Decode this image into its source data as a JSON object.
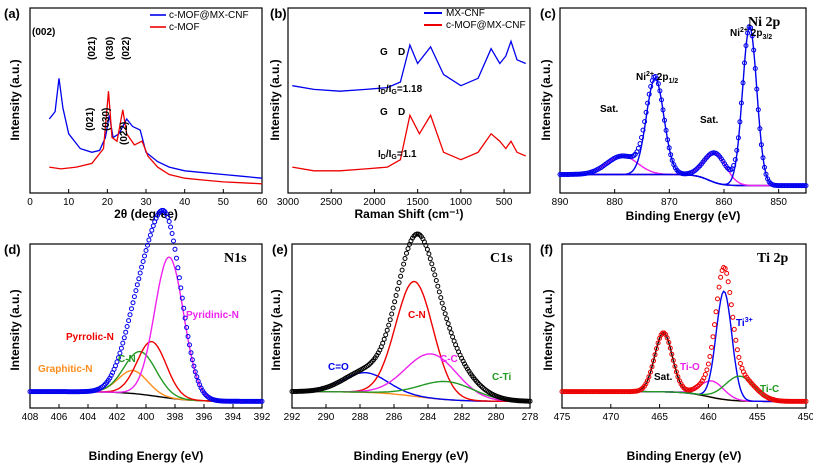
{
  "chart_data": [
    {
      "id": "a",
      "type": "line",
      "panel_label": "(a)",
      "xlabel": "2θ (degree)",
      "ylabel": "Intensity (a.u.)",
      "xlim": [
        0,
        60
      ],
      "xticks": [
        "0",
        "10",
        "20",
        "30",
        "40",
        "50",
        "60"
      ],
      "legend": [
        {
          "name": "c-MOF@MX-CNF",
          "color": "#0000ee"
        },
        {
          "name": "c-MOF",
          "color": "#ee0000"
        }
      ],
      "series": [
        {
          "name": "c-MOF@MX-CNF",
          "color": "#0000ee",
          "points": [
            [
              5,
              0.4
            ],
            [
              6.5,
              0.44
            ],
            [
              7.5,
              0.62
            ],
            [
              8.5,
              0.46
            ],
            [
              10,
              0.32
            ],
            [
              13,
              0.24
            ],
            [
              16,
              0.22
            ],
            [
              18,
              0.23
            ],
            [
              19.5,
              0.3
            ],
            [
              20.5,
              0.42
            ],
            [
              21.5,
              0.3
            ],
            [
              23,
              0.32
            ],
            [
              25,
              0.4
            ],
            [
              26.5,
              0.36
            ],
            [
              28.5,
              0.34
            ],
            [
              30,
              0.22
            ],
            [
              33,
              0.17
            ],
            [
              36,
              0.14
            ],
            [
              40,
              0.12
            ],
            [
              45,
              0.11
            ],
            [
              50,
              0.1
            ],
            [
              55,
              0.09
            ],
            [
              60,
              0.08
            ]
          ]
        },
        {
          "name": "c-MOF",
          "color": "#ee0000",
          "points": [
            [
              5,
              0.14
            ],
            [
              8,
              0.13
            ],
            [
              12,
              0.14
            ],
            [
              16,
              0.16
            ],
            [
              19,
              0.24
            ],
            [
              20.3,
              0.55
            ],
            [
              21.2,
              0.3
            ],
            [
              22.5,
              0.28
            ],
            [
              24,
              0.45
            ],
            [
              25,
              0.32
            ],
            [
              27,
              0.26
            ],
            [
              29,
              0.28
            ],
            [
              30.5,
              0.2
            ],
            [
              33,
              0.14
            ],
            [
              36,
              0.1
            ],
            [
              40,
              0.08
            ],
            [
              45,
              0.07
            ],
            [
              50,
              0.06
            ],
            [
              55,
              0.055
            ],
            [
              60,
              0.05
            ]
          ]
        }
      ],
      "annotations": [
        "(002)",
        "(021)",
        "(030)",
        "(022)",
        "(021)",
        "(030)",
        "(022)"
      ]
    },
    {
      "id": "b",
      "type": "line",
      "panel_label": "(b)",
      "xlabel": "Raman Shift (cm⁻¹)",
      "ylabel": "Intensity (a.u.)",
      "xlim": [
        3000,
        200
      ],
      "xticks": [
        "3000",
        "2500",
        "2000",
        "1500",
        "1000",
        "500"
      ],
      "legend": [
        {
          "name": "MX-CNF",
          "color": "#0000ee"
        },
        {
          "name": "c-MOF@MX-CNF",
          "color": "#ee0000"
        }
      ],
      "series": [
        {
          "name": "MX-CNF",
          "color": "#0000ee",
          "points": [
            [
              2950,
              0.58
            ],
            [
              2700,
              0.56
            ],
            [
              2400,
              0.55
            ],
            [
              2100,
              0.56
            ],
            [
              1850,
              0.57
            ],
            [
              1700,
              0.6
            ],
            [
              1590,
              0.8
            ],
            [
              1500,
              0.7
            ],
            [
              1350,
              0.79
            ],
            [
              1200,
              0.64
            ],
            [
              1000,
              0.58
            ],
            [
              800,
              0.62
            ],
            [
              650,
              0.78
            ],
            [
              550,
              0.7
            ],
            [
              480,
              0.74
            ],
            [
              420,
              0.82
            ],
            [
              350,
              0.72
            ],
            [
              250,
              0.7
            ]
          ]
        },
        {
          "name": "c-MOF@MX-CNF",
          "color": "#ee0000",
          "points": [
            [
              2950,
              0.14
            ],
            [
              2700,
              0.12
            ],
            [
              2400,
              0.12
            ],
            [
              2100,
              0.13
            ],
            [
              1850,
              0.14
            ],
            [
              1700,
              0.18
            ],
            [
              1590,
              0.42
            ],
            [
              1480,
              0.32
            ],
            [
              1350,
              0.42
            ],
            [
              1200,
              0.22
            ],
            [
              1000,
              0.18
            ],
            [
              800,
              0.22
            ],
            [
              650,
              0.32
            ],
            [
              550,
              0.28
            ],
            [
              480,
              0.24
            ],
            [
              420,
              0.28
            ],
            [
              350,
              0.22
            ],
            [
              250,
              0.2
            ]
          ]
        }
      ],
      "annotations": [
        "G",
        "D",
        "G",
        "D"
      ],
      "ratio_labels": [
        {
          "text": "ID/IG=1.18",
          "main": "I",
          "sub1": "D",
          "sep": "/I",
          "sub2": "G",
          "val": "=1.18"
        },
        {
          "text": "ID/IG=1.1",
          "main": "I",
          "sub1": "D",
          "sep": "/I",
          "sub2": "G",
          "val": "=1.1"
        }
      ]
    },
    {
      "id": "c",
      "type": "xps",
      "panel_label": "(c)",
      "title": "Ni 2p",
      "xlabel": "Binding Energy (eV)",
      "ylabel": "Intensity (a.u.)",
      "xlim": [
        890,
        845
      ],
      "xticks": [
        "890",
        "880",
        "870",
        "860",
        "850"
      ],
      "peaks": [
        {
          "name": "Sat.",
          "label_parts": [
            "Sat."
          ],
          "color": "#ee22ee",
          "center": 878.6,
          "amp": 0.1,
          "sigma": 2.8
        },
        {
          "name": "Ni2+ 2p1/2",
          "label_parts": [
            "Ni",
            "2+",
            " 2p",
            "1/2"
          ],
          "color": "#0000ee",
          "center": 872.6,
          "amp": 0.52,
          "sigma": 1.6
        },
        {
          "name": "Sat.",
          "label_parts": [
            "Sat."
          ],
          "color": "#ee22ee",
          "center": 861.6,
          "amp": 0.16,
          "sigma": 2.0
        },
        {
          "name": "Ni2+ 2p3/2",
          "label_parts": [
            "Ni",
            "2+",
            " 2p",
            "3/2"
          ],
          "color": "#0000ee",
          "center": 855.3,
          "amp": 0.86,
          "sigma": 1.3
        }
      ],
      "background_color": "#228822",
      "envelope_color": "#0000ee"
    },
    {
      "id": "d",
      "type": "xps",
      "panel_label": "(d)",
      "title": "N1s",
      "xlabel": "Binding Energy (eV)",
      "ylabel": "Intensity (a.u.)",
      "xlim": [
        408,
        392
      ],
      "xticks": [
        "408",
        "406",
        "404",
        "402",
        "400",
        "398",
        "396",
        "394",
        "392"
      ],
      "peaks": [
        {
          "name": "Graphitic-N",
          "color": "#ff8c1a",
          "center": 400.9,
          "amp": 0.14,
          "sigma": 1.0
        },
        {
          "name": "C-N",
          "color": "#229922",
          "center": 400.4,
          "amp": 0.26,
          "sigma": 1.1
        },
        {
          "name": "Pyrrolic-N",
          "color": "#ee0000",
          "center": 399.6,
          "amp": 0.33,
          "sigma": 1.0
        },
        {
          "name": "Pyridinic-N",
          "color": "#ee22ee",
          "center": 398.4,
          "amp": 0.86,
          "sigma": 1.0
        }
      ],
      "background_color": "#000000",
      "envelope_color": "#0000ee"
    },
    {
      "id": "e",
      "type": "xps",
      "panel_label": "(e)",
      "title": "C1s",
      "xlabel": "Binding Energy (eV)",
      "ylabel": "Intensity (a.u.)",
      "xlim": [
        292,
        278
      ],
      "xticks": [
        "292",
        "290",
        "288",
        "286",
        "284",
        "282",
        "280",
        "278"
      ],
      "peaks": [
        {
          "name": "C=O",
          "color": "#0000ee",
          "center": 287.7,
          "amp": 0.12,
          "sigma": 1.3
        },
        {
          "name": "C-N",
          "color": "#ee0000",
          "center": 284.8,
          "amp": 0.7,
          "sigma": 1.1
        },
        {
          "name": "C-C",
          "color": "#ee22ee",
          "center": 283.8,
          "amp": 0.27,
          "sigma": 1.5
        },
        {
          "name": "C-Ti",
          "color": "#229922",
          "center": 282.9,
          "amp": 0.11,
          "sigma": 1.6
        }
      ],
      "background_color": "#ff8c1a",
      "envelope_color": "#000000"
    },
    {
      "id": "f",
      "type": "xps",
      "panel_label": "(f)",
      "title": "Ti 2p",
      "xlabel": "Binding Energy (eV)",
      "ylabel": "Intensity (a.u.)",
      "xlim": [
        475,
        450
      ],
      "xticks": [
        "475",
        "470",
        "465",
        "460",
        "455",
        "450"
      ],
      "peaks": [
        {
          "name": "Sat.",
          "label_parts": [
            "Sat."
          ],
          "color": "#000000",
          "center": 464.6,
          "amp": 0.36,
          "sigma": 0.9
        },
        {
          "name": "Ti-O",
          "label_parts": [
            "Ti-O"
          ],
          "color": "#ee22ee",
          "center": 459.6,
          "amp": 0.1,
          "sigma": 1.2
        },
        {
          "name": "Ti3+",
          "label_parts": [
            "Ti",
            "3+"
          ],
          "color": "#0000ee",
          "center": 458.4,
          "amp": 0.66,
          "sigma": 0.8
        },
        {
          "name": "Ti-C",
          "label_parts": [
            "Ti-C"
          ],
          "color": "#229922",
          "center": 456.8,
          "amp": 0.15,
          "sigma": 1.5
        }
      ],
      "background_color": "#ff8c1a",
      "envelope_color": "#ee0000"
    }
  ]
}
